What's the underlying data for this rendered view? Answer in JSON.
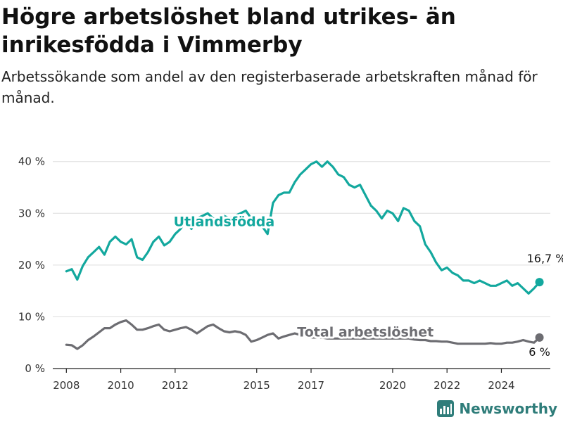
{
  "title": "Högre arbetslöshet bland utrikes- än inrikesfödda i Vimmerby",
  "subtitle": "Arbetssökande som andel av den registerbaserade arbetskraften månad för månad.",
  "brand": "Newsworthy",
  "colors": {
    "foreign": "#13a89e",
    "total": "#6d6d72",
    "grid": "#dddddd",
    "axis": "#222222",
    "brand": "#2f7d7a"
  },
  "chart_data": {
    "type": "line",
    "ylim": [
      0,
      42
    ],
    "yticks": [
      0,
      10,
      20,
      30,
      40
    ],
    "ytick_labels": [
      "0 %",
      "10 %",
      "20 %",
      "30 %",
      "40 %"
    ],
    "xlim": [
      2007.5,
      2025.8
    ],
    "xticks": [
      2008,
      2010,
      2012,
      2015,
      2017,
      2020,
      2022,
      2024
    ],
    "xtick_labels": [
      "2008",
      "2010",
      "2012",
      "2015",
      "2017",
      "2020",
      "2022",
      "2024"
    ],
    "grid": true,
    "series": [
      {
        "name": "Utlandsfödda",
        "end_label": "16,7 %",
        "x": [
          2008.0,
          2008.2,
          2008.4,
          2008.6,
          2008.8,
          2009.0,
          2009.2,
          2009.4,
          2009.6,
          2009.8,
          2010.0,
          2010.2,
          2010.4,
          2010.6,
          2010.8,
          2011.0,
          2011.2,
          2011.4,
          2011.6,
          2011.8,
          2012.0,
          2012.2,
          2012.4,
          2012.6,
          2012.8,
          2013.0,
          2013.2,
          2013.4,
          2013.6,
          2013.8,
          2014.0,
          2014.2,
          2014.4,
          2014.6,
          2014.8,
          2015.0,
          2015.2,
          2015.4,
          2015.6,
          2015.8,
          2016.0,
          2016.2,
          2016.4,
          2016.6,
          2016.8,
          2017.0,
          2017.2,
          2017.4,
          2017.6,
          2017.8,
          2018.0,
          2018.2,
          2018.4,
          2018.6,
          2018.8,
          2019.0,
          2019.2,
          2019.4,
          2019.6,
          2019.8,
          2020.0,
          2020.2,
          2020.4,
          2020.6,
          2020.8,
          2021.0,
          2021.2,
          2021.4,
          2021.6,
          2021.8,
          2022.0,
          2022.2,
          2022.4,
          2022.6,
          2022.8,
          2023.0,
          2023.2,
          2023.4,
          2023.6,
          2023.8,
          2024.0,
          2024.2,
          2024.4,
          2024.6,
          2024.8,
          2025.0,
          2025.2,
          2025.4
        ],
        "values": [
          18.8,
          19.2,
          17.2,
          19.8,
          21.5,
          22.5,
          23.5,
          22.0,
          24.5,
          25.5,
          24.5,
          24.0,
          25.0,
          21.5,
          21.0,
          22.5,
          24.5,
          25.5,
          23.8,
          24.5,
          26.0,
          27.0,
          28.5,
          27.0,
          29.0,
          29.5,
          30.0,
          29.0,
          28.5,
          29.5,
          29.0,
          29.5,
          30.0,
          30.5,
          29.0,
          29.0,
          27.5,
          26.0,
          32.0,
          33.5,
          34.0,
          34.0,
          36.0,
          37.5,
          38.5,
          39.5,
          40.0,
          39.0,
          40.0,
          39.0,
          37.5,
          37.0,
          35.5,
          35.0,
          35.5,
          33.5,
          31.5,
          30.5,
          29.0,
          30.5,
          30.0,
          28.5,
          31.0,
          30.5,
          28.5,
          27.5,
          24.0,
          22.5,
          20.5,
          19.0,
          19.5,
          18.5,
          18.0,
          17.0,
          17.0,
          16.5,
          17.0,
          16.5,
          16.0,
          16.0,
          16.5,
          17.0,
          16.0,
          16.5,
          15.5,
          14.5,
          15.5,
          16.7
        ]
      },
      {
        "name": "Total arbetslöshet",
        "end_label": "6 %",
        "x": [
          2008.0,
          2008.2,
          2008.4,
          2008.6,
          2008.8,
          2009.0,
          2009.2,
          2009.4,
          2009.6,
          2009.8,
          2010.0,
          2010.2,
          2010.4,
          2010.6,
          2010.8,
          2011.0,
          2011.2,
          2011.4,
          2011.6,
          2011.8,
          2012.0,
          2012.2,
          2012.4,
          2012.6,
          2012.8,
          2013.0,
          2013.2,
          2013.4,
          2013.6,
          2013.8,
          2014.0,
          2014.2,
          2014.4,
          2014.6,
          2014.8,
          2015.0,
          2015.2,
          2015.4,
          2015.6,
          2015.8,
          2016.0,
          2016.2,
          2016.4,
          2016.6,
          2016.8,
          2017.0,
          2017.2,
          2017.4,
          2017.6,
          2017.8,
          2018.0,
          2018.2,
          2018.4,
          2018.6,
          2018.8,
          2019.0,
          2019.2,
          2019.4,
          2019.6,
          2019.8,
          2020.0,
          2020.2,
          2020.4,
          2020.6,
          2020.8,
          2021.0,
          2021.2,
          2021.4,
          2021.6,
          2021.8,
          2022.0,
          2022.2,
          2022.4,
          2022.6,
          2022.8,
          2023.0,
          2023.2,
          2023.4,
          2023.6,
          2023.8,
          2024.0,
          2024.2,
          2024.4,
          2024.6,
          2024.8,
          2025.0,
          2025.2,
          2025.4
        ],
        "values": [
          4.6,
          4.5,
          3.8,
          4.5,
          5.5,
          6.2,
          7.0,
          7.8,
          7.8,
          8.5,
          9.0,
          9.3,
          8.5,
          7.5,
          7.5,
          7.8,
          8.2,
          8.5,
          7.5,
          7.2,
          7.5,
          7.8,
          8.0,
          7.5,
          6.8,
          7.5,
          8.2,
          8.5,
          7.8,
          7.2,
          7.0,
          7.2,
          7.0,
          6.5,
          5.2,
          5.5,
          6.0,
          6.5,
          6.8,
          5.8,
          6.2,
          6.5,
          6.8,
          6.5,
          6.2,
          6.0,
          6.0,
          6.0,
          5.8,
          5.8,
          5.8,
          5.8,
          5.8,
          5.8,
          5.8,
          5.8,
          5.8,
          5.8,
          5.8,
          5.8,
          5.8,
          5.8,
          5.8,
          5.8,
          5.6,
          5.5,
          5.5,
          5.3,
          5.3,
          5.2,
          5.2,
          5.0,
          4.8,
          4.8,
          4.8,
          4.8,
          4.8,
          4.8,
          4.9,
          4.8,
          4.8,
          5.0,
          5.0,
          5.2,
          5.5,
          5.2,
          5.0,
          6.0
        ]
      }
    ]
  }
}
